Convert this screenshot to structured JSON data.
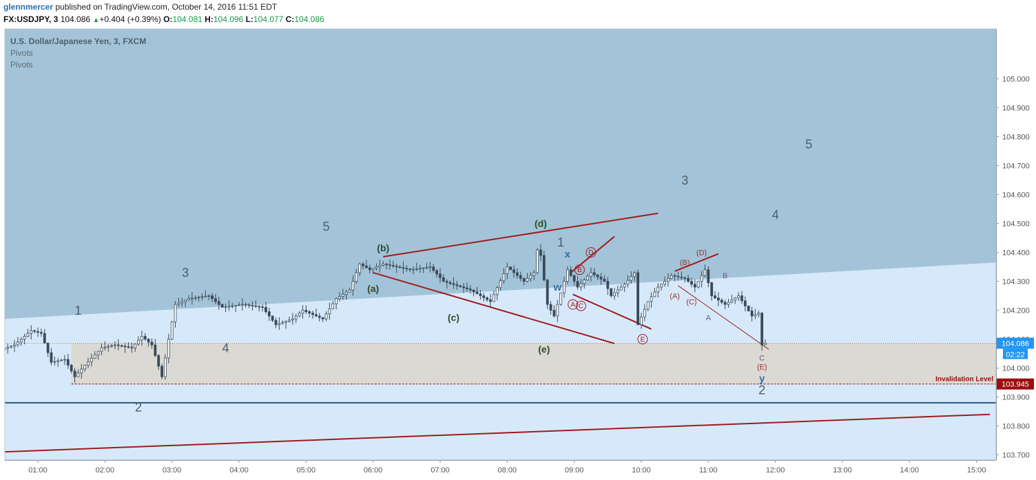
{
  "header": {
    "user": "glennmercer",
    "published_text": "published on TradingView.com, October 14, 2016 11:51 EDT",
    "symbol": "FX:USDJPY, 3",
    "last": "104.086",
    "change": "+0.404 (+0.39%)",
    "o_label": "O:",
    "o": "104.081",
    "h_label": "H:",
    "h": "104.096",
    "l_label": "L:",
    "l": "104.077",
    "c_label": "C:",
    "c": "104.086"
  },
  "legend": {
    "title": "U.S. Dollar/Japanese Yen, 3, FXCM",
    "indicator_1": "Pivots",
    "indicator_2": "Pivots"
  },
  "colors": {
    "upper_zone": "#a3c3d8",
    "lower_zone": "#d6e9fb",
    "invalidation_zone": "#dcd6cb",
    "trendline": "#a01a1a",
    "support_line": "#1f5a80",
    "candle": "#3a4a58",
    "price_tag": "#2196f3",
    "invalidation_tag": "#9c0d0d"
  },
  "chart_data": {
    "type": "candlestick",
    "symbol": "USDJPY",
    "interval_minutes": 3,
    "x_axis": {
      "ticks": [
        "01:00",
        "02:00",
        "03:00",
        "04:00",
        "05:00",
        "06:00",
        "07:00",
        "08:00",
        "09:00",
        "10:00",
        "11:00",
        "12:00",
        "13:00",
        "14:00",
        "15:00"
      ],
      "start_hour": 0.45,
      "end_hour": 15.2
    },
    "y_axis": {
      "range": [
        103.56,
        105.08
      ],
      "ticks": [
        "105.000",
        "104.900",
        "104.800",
        "104.700",
        "104.600",
        "104.500",
        "104.400",
        "104.300",
        "104.200",
        "104.100",
        "104.000",
        "103.900",
        "103.800",
        "103.700",
        "103.600"
      ]
    },
    "last_price": {
      "label": "104.086",
      "value": 104.086,
      "countdown": "02:22"
    },
    "invalidation": {
      "label": "Invalidation Level",
      "value": 103.945,
      "price_label": "103.945",
      "from_hour": 1.5
    },
    "support_level": 103.88,
    "price_path": [
      [
        0.45,
        104.06
      ],
      [
        0.7,
        104.08
      ],
      [
        0.95,
        104.13
      ],
      [
        1.1,
        104.12
      ],
      [
        1.25,
        104.02
      ],
      [
        1.45,
        104.03
      ],
      [
        1.6,
        103.97
      ],
      [
        1.75,
        104.01
      ],
      [
        2.0,
        104.07
      ],
      [
        2.2,
        104.08
      ],
      [
        2.45,
        104.07
      ],
      [
        2.6,
        104.11
      ],
      [
        2.75,
        104.08
      ],
      [
        2.9,
        103.97
      ],
      [
        3.0,
        104.1
      ],
      [
        3.1,
        104.22
      ],
      [
        3.3,
        104.24
      ],
      [
        3.6,
        104.25
      ],
      [
        3.8,
        104.21
      ],
      [
        4.1,
        104.22
      ],
      [
        4.4,
        104.21
      ],
      [
        4.6,
        104.15
      ],
      [
        4.85,
        104.17
      ],
      [
        5.0,
        104.2
      ],
      [
        5.3,
        104.17
      ],
      [
        5.5,
        104.24
      ],
      [
        5.7,
        104.27
      ],
      [
        5.85,
        104.36
      ],
      [
        6.0,
        104.34
      ],
      [
        6.2,
        104.36
      ],
      [
        6.6,
        104.34
      ],
      [
        6.9,
        104.35
      ],
      [
        7.1,
        104.3
      ],
      [
        7.5,
        104.27
      ],
      [
        7.8,
        104.23
      ],
      [
        8.05,
        104.35
      ],
      [
        8.3,
        104.3
      ],
      [
        8.45,
        104.33
      ],
      [
        8.52,
        104.44
      ],
      [
        8.65,
        104.22
      ],
      [
        8.75,
        104.18
      ],
      [
        8.85,
        104.26
      ],
      [
        8.95,
        104.34
      ],
      [
        9.1,
        104.28
      ],
      [
        9.3,
        104.33
      ],
      [
        9.5,
        104.3
      ],
      [
        9.6,
        104.25
      ],
      [
        9.8,
        104.29
      ],
      [
        9.95,
        104.33
      ],
      [
        10.0,
        104.15
      ],
      [
        10.15,
        104.23
      ],
      [
        10.3,
        104.28
      ],
      [
        10.5,
        104.32
      ],
      [
        10.7,
        104.31
      ],
      [
        10.85,
        104.28
      ],
      [
        11.0,
        104.34
      ],
      [
        11.1,
        104.25
      ],
      [
        11.3,
        104.22
      ],
      [
        11.5,
        104.25
      ],
      [
        11.7,
        104.18
      ],
      [
        11.8,
        104.19
      ],
      [
        11.85,
        104.08
      ],
      [
        11.88,
        104.086
      ]
    ],
    "trendlines": [
      {
        "from": [
          0.45,
          103.71
        ],
        "to": [
          15.2,
          103.84
        ],
        "role": "long-term lower"
      },
      {
        "from": [
          6.15,
          104.385
        ],
        "to": [
          10.25,
          104.535
        ],
        "role": "triangle upper"
      },
      {
        "from": [
          6.0,
          104.33
        ],
        "to": [
          9.6,
          104.085
        ],
        "role": "triangle lower"
      },
      {
        "from": [
          8.95,
          104.33
        ],
        "to": [
          9.6,
          104.455
        ],
        "role": "small upper"
      },
      {
        "from": [
          8.98,
          104.255
        ],
        "to": [
          10.15,
          104.135
        ],
        "role": "small lower"
      },
      {
        "from": [
          10.5,
          104.335
        ],
        "to": [
          11.15,
          104.395
        ],
        "role": "ending upper"
      },
      {
        "from": [
          10.55,
          104.285
        ],
        "to": [
          11.9,
          104.065
        ],
        "role": "ending lower"
      }
    ],
    "wave_labels": [
      {
        "text": "1",
        "x": 1.6,
        "y": 104.2,
        "style": "primary"
      },
      {
        "text": "2",
        "x": 2.5,
        "y": 103.865,
        "style": "primary"
      },
      {
        "text": "3",
        "x": 3.2,
        "y": 104.33,
        "style": "primary"
      },
      {
        "text": "4",
        "x": 3.8,
        "y": 104.07,
        "style": "primary"
      },
      {
        "text": "5",
        "x": 5.3,
        "y": 104.49,
        "style": "primary"
      },
      {
        "text": "(a)",
        "x": 6.0,
        "y": 104.275,
        "style": "minor"
      },
      {
        "text": "(b)",
        "x": 6.15,
        "y": 104.415,
        "style": "minor"
      },
      {
        "text": "(c)",
        "x": 7.2,
        "y": 104.175,
        "style": "minor"
      },
      {
        "text": "(d)",
        "x": 8.5,
        "y": 104.5,
        "style": "minor"
      },
      {
        "text": "(e)",
        "x": 8.55,
        "y": 104.065,
        "style": "minor"
      },
      {
        "text": "1",
        "x": 8.8,
        "y": 104.435,
        "style": "primary"
      },
      {
        "text": "x",
        "x": 8.9,
        "y": 104.395,
        "style": "blue"
      },
      {
        "text": "w",
        "x": 8.75,
        "y": 104.28,
        "style": "blue"
      },
      {
        "text": "A",
        "x": 8.98,
        "y": 104.22,
        "style": "circled"
      },
      {
        "text": "B",
        "x": 9.08,
        "y": 104.34,
        "style": "circled"
      },
      {
        "text": "C",
        "x": 9.1,
        "y": 104.215,
        "style": "circled"
      },
      {
        "text": "D",
        "x": 9.25,
        "y": 104.4,
        "style": "circled"
      },
      {
        "text": "E",
        "x": 10.02,
        "y": 104.1,
        "style": "circled"
      },
      {
        "text": "3",
        "x": 10.65,
        "y": 104.65,
        "style": "primary"
      },
      {
        "text": "4",
        "x": 12.0,
        "y": 104.53,
        "style": "primary"
      },
      {
        "text": "5",
        "x": 12.5,
        "y": 104.775,
        "style": "primary"
      },
      {
        "text": "(A)",
        "x": 10.5,
        "y": 104.25,
        "style": "red"
      },
      {
        "text": "(B)",
        "x": 10.65,
        "y": 104.365,
        "style": "red"
      },
      {
        "text": "(C)",
        "x": 10.75,
        "y": 104.23,
        "style": "red"
      },
      {
        "text": "(D)",
        "x": 10.9,
        "y": 104.4,
        "style": "red"
      },
      {
        "text": "A",
        "x": 11.0,
        "y": 104.175,
        "style": "purple"
      },
      {
        "text": "B",
        "x": 11.25,
        "y": 104.32,
        "style": "purple"
      },
      {
        "text": "C",
        "x": 11.8,
        "y": 104.035,
        "style": "purple"
      },
      {
        "text": "(E)",
        "x": 11.8,
        "y": 104.005,
        "style": "red"
      },
      {
        "text": "y",
        "x": 11.8,
        "y": 103.965,
        "style": "blue"
      },
      {
        "text": "2",
        "x": 11.8,
        "y": 103.925,
        "style": "primary"
      }
    ]
  }
}
